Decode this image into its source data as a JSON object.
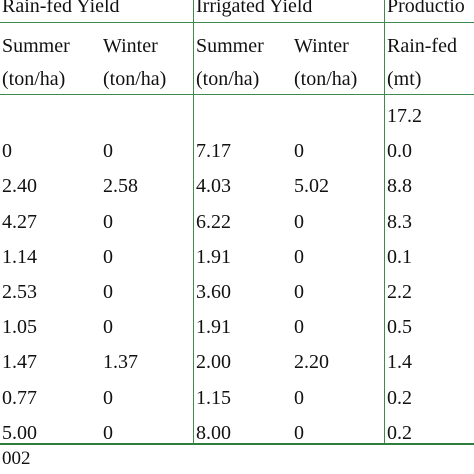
{
  "table": {
    "group_headers": [
      "Rain-fed Yield",
      "Irrigated Yield",
      "Productio"
    ],
    "season_headers": [
      "Summer",
      "Winter",
      "Summer",
      "Winter",
      "Rain-fed"
    ],
    "unit_headers": [
      "(ton/ha)",
      "(ton/ha)",
      "(ton/ha)",
      "(ton/ha)",
      "(mt)"
    ],
    "rows": [
      [
        "",
        "",
        "",
        "",
        "17.2"
      ],
      [
        "0",
        "0",
        "7.17",
        "0",
        "0.0"
      ],
      [
        "2.40",
        "2.58",
        "4.03",
        "5.02",
        "8.8"
      ],
      [
        "4.27",
        "0",
        "6.22",
        "0",
        "8.3"
      ],
      [
        "1.14",
        "0",
        "1.91",
        "0",
        "0.1"
      ],
      [
        "2.53",
        "0",
        "3.60",
        "0",
        "2.2"
      ],
      [
        "1.05",
        "0",
        "1.91",
        "0",
        "0.5"
      ],
      [
        "1.47",
        "1.37",
        "2.00",
        "2.20",
        "1.4"
      ],
      [
        "0.77",
        "0",
        "1.15",
        "0",
        "0.2"
      ],
      [
        "5.00",
        "0",
        "8.00",
        "0",
        "0.2"
      ]
    ],
    "footer_text": "002"
  },
  "colors": {
    "rule": "#3f8a4f",
    "rule_thick": "#2f7d3d"
  }
}
